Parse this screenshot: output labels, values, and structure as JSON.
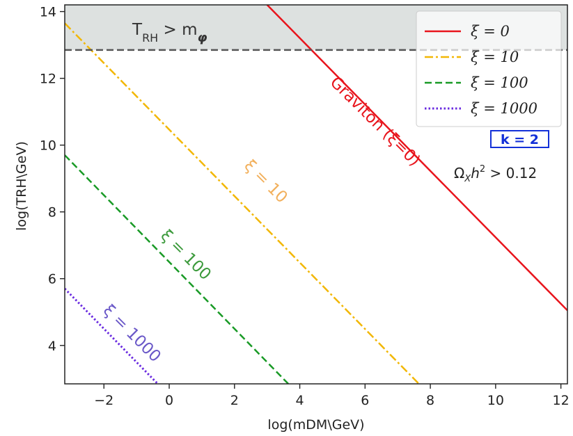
{
  "chart_data": {
    "type": "line",
    "xlabel": "log(mDM\\GeV)",
    "ylabel": "log(TRH\\GeV)",
    "xlim": [
      -3.2,
      12.2
    ],
    "ylim": [
      2.85,
      14.2
    ],
    "xticks": [
      -2,
      0,
      2,
      4,
      6,
      8,
      10,
      12
    ],
    "xtick_labels": [
      "−2",
      "0",
      "2",
      "4",
      "6",
      "8",
      "10",
      "12"
    ],
    "yticks": [
      4,
      6,
      8,
      10,
      12,
      14
    ],
    "ytick_labels": [
      "4",
      "6",
      "8",
      "10",
      "12",
      "14"
    ],
    "grid": false,
    "legend_position": "top-right",
    "series": [
      {
        "name": "ξ = 0",
        "color": "#e8141c",
        "style": "solid",
        "x": [
          3.0,
          12.2
        ],
        "y": [
          14.2,
          5.05
        ]
      },
      {
        "name": "ξ = 10",
        "color": "#f2b705",
        "style": "dashdot",
        "x": [
          -3.2,
          7.65
        ],
        "y": [
          13.65,
          2.85
        ]
      },
      {
        "name": "ξ = 100",
        "color": "#199a26",
        "style": "dashed",
        "x": [
          -3.2,
          3.65
        ],
        "y": [
          9.7,
          2.85
        ]
      },
      {
        "name": "ξ = 1000",
        "color": "#6a2be0",
        "style": "dotted",
        "x": [
          -3.2,
          -0.35
        ],
        "y": [
          5.7,
          2.85
        ]
      }
    ],
    "region": {
      "label_main": "T",
      "label_sub1": "RH",
      "label_rel": " > m",
      "label_sub2": "φ",
      "y_from": 12.85,
      "color": "#d7dcda"
    },
    "threshold_line": {
      "y": 12.85,
      "color": "#555555",
      "style": "dashed"
    },
    "annotations": [
      {
        "text": "Graviton (ξ=0)",
        "color": "#e8141c",
        "x": 6.2,
        "y": 10.6,
        "angle": 44.8
      },
      {
        "text": "ξ = 10",
        "color": "#f2b05c",
        "x": 2.85,
        "y": 8.8,
        "angle": 44.8
      },
      {
        "text": "ξ = 100",
        "color": "#3c9a3c",
        "x": 0.4,
        "y": 6.6,
        "angle": 44.8
      },
      {
        "text": "ξ = 1000",
        "color": "#6a58c8",
        "x": -1.25,
        "y": 4.25,
        "angle": 44.8
      }
    ],
    "badge": "k = 2",
    "badge_color": "#1330d8",
    "omega_label": {
      "main": "Ω",
      "sub": "X",
      "h": "h",
      "sup": "2",
      "rel": " > 0.12"
    }
  }
}
